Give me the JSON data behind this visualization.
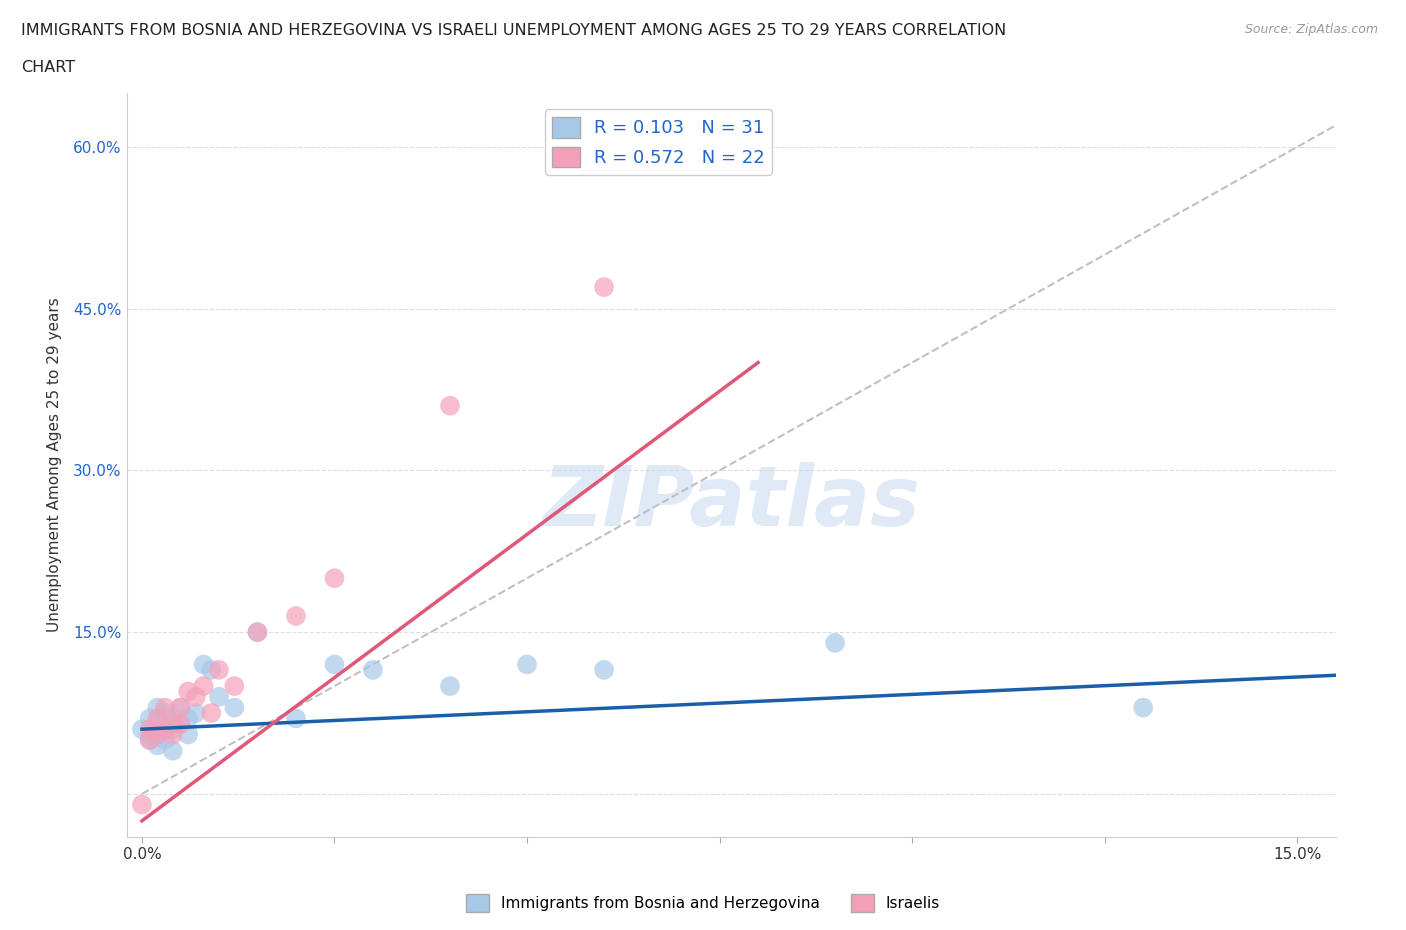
{
  "title_line1": "IMMIGRANTS FROM BOSNIA AND HERZEGOVINA VS ISRAELI UNEMPLOYMENT AMONG AGES 25 TO 29 YEARS CORRELATION",
  "title_line2": "CHART",
  "source": "Source: ZipAtlas.com",
  "ylabel": "Unemployment Among Ages 25 to 29 years",
  "xlim": [
    -0.002,
    0.155
  ],
  "ylim": [
    -0.04,
    0.65
  ],
  "xticks": [
    0.0,
    0.025,
    0.05,
    0.075,
    0.1,
    0.125,
    0.15
  ],
  "xtick_labels": [
    "0.0%",
    "",
    "",
    "",
    "",
    "",
    "15.0%"
  ],
  "yticks": [
    0.0,
    0.15,
    0.3,
    0.45,
    0.6
  ],
  "ytick_labels": [
    "",
    "15.0%",
    "30.0%",
    "45.0%",
    "60.0%"
  ],
  "r_blue": 0.103,
  "n_blue": 31,
  "r_pink": 0.572,
  "n_pink": 22,
  "blue_color": "#a8c8e8",
  "pink_color": "#f4a0b8",
  "blue_line_color": "#1a5fa8",
  "pink_line_color": "#e05878",
  "gray_line_color": "#c0c0c0",
  "legend_label_blue": "Immigrants from Bosnia and Herzegovina",
  "legend_label_pink": "Israelis",
  "blue_scatter_x": [
    0.0,
    0.001,
    0.001,
    0.001,
    0.002,
    0.002,
    0.002,
    0.003,
    0.003,
    0.003,
    0.004,
    0.004,
    0.004,
    0.005,
    0.005,
    0.006,
    0.006,
    0.007,
    0.008,
    0.009,
    0.01,
    0.012,
    0.015,
    0.02,
    0.025,
    0.03,
    0.04,
    0.05,
    0.06,
    0.09,
    0.13
  ],
  "blue_scatter_y": [
    0.06,
    0.05,
    0.07,
    0.055,
    0.065,
    0.045,
    0.08,
    0.06,
    0.075,
    0.05,
    0.07,
    0.06,
    0.04,
    0.065,
    0.08,
    0.055,
    0.07,
    0.075,
    0.12,
    0.115,
    0.09,
    0.08,
    0.15,
    0.07,
    0.12,
    0.115,
    0.1,
    0.12,
    0.115,
    0.14,
    0.08
  ],
  "pink_scatter_x": [
    0.0,
    0.001,
    0.001,
    0.002,
    0.002,
    0.003,
    0.003,
    0.004,
    0.004,
    0.005,
    0.005,
    0.006,
    0.007,
    0.008,
    0.009,
    0.01,
    0.012,
    0.015,
    0.02,
    0.025,
    0.04,
    0.06
  ],
  "pink_scatter_y": [
    -0.01,
    0.05,
    0.06,
    0.055,
    0.07,
    0.06,
    0.08,
    0.065,
    0.055,
    0.08,
    0.065,
    0.095,
    0.09,
    0.1,
    0.075,
    0.115,
    0.1,
    0.15,
    0.165,
    0.2,
    0.36,
    0.47
  ],
  "blue_trend_x": [
    0.0,
    0.155
  ],
  "blue_trend_y": [
    0.06,
    0.11
  ],
  "pink_trend_x": [
    0.0,
    0.08
  ],
  "pink_trend_y": [
    -0.025,
    0.4
  ],
  "gray_trend_x": [
    0.0,
    0.155
  ],
  "gray_trend_y": [
    0.0,
    0.62
  ],
  "watermark": "ZIPatlas",
  "background_color": "#ffffff"
}
